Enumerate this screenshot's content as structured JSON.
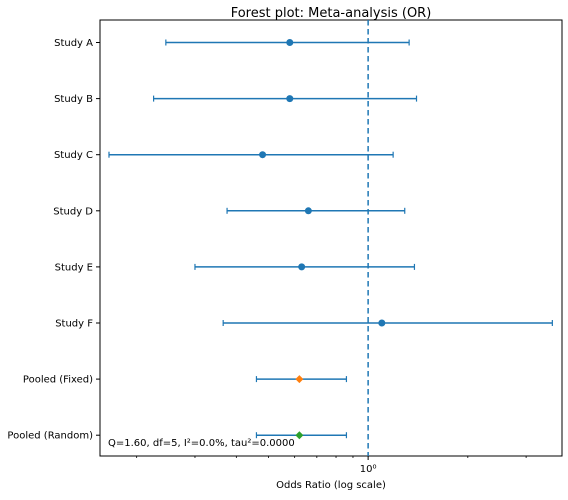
{
  "chart_data": {
    "type": "forest",
    "title": "Forest plot: Meta-analysis (OR)",
    "xlabel": "Odds Ratio (log scale)",
    "ylabel": "",
    "x_scale": "log",
    "xlim": [
      0.155,
      3.85
    ],
    "x_ticks": [
      {
        "value": 1,
        "label": "10⁰"
      }
    ],
    "reference_line": {
      "value": 1,
      "style": "dashed",
      "color": "#1f77b4"
    },
    "grid": false,
    "rows": [
      {
        "label": "Study A",
        "estimate": 0.58,
        "lower": 0.245,
        "upper": 1.33,
        "marker": "circle",
        "color": "#1f77b4"
      },
      {
        "label": "Study B",
        "estimate": 0.58,
        "lower": 0.225,
        "upper": 1.4,
        "marker": "circle",
        "color": "#1f77b4"
      },
      {
        "label": "Study C",
        "estimate": 0.48,
        "lower": 0.165,
        "upper": 1.19,
        "marker": "circle",
        "color": "#1f77b4"
      },
      {
        "label": "Study D",
        "estimate": 0.66,
        "lower": 0.375,
        "upper": 1.29,
        "marker": "circle",
        "color": "#1f77b4"
      },
      {
        "label": "Study E",
        "estimate": 0.63,
        "lower": 0.3,
        "upper": 1.38,
        "marker": "circle",
        "color": "#1f77b4"
      },
      {
        "label": "Study F",
        "estimate": 1.1,
        "lower": 0.365,
        "upper": 3.6,
        "marker": "circle",
        "color": "#1f77b4"
      },
      {
        "label": "Pooled (Fixed)",
        "estimate": 0.62,
        "lower": 0.46,
        "upper": 0.86,
        "marker": "diamond",
        "color": "#ff7f0e"
      },
      {
        "label": "Pooled (Random)",
        "estimate": 0.62,
        "lower": 0.46,
        "upper": 0.86,
        "marker": "diamond",
        "color": "#2ca02c"
      }
    ],
    "annotation": "Q=1.60, df=5, I²=0.0%, tau²=0.0000",
    "annotation_position": "bottom-left"
  }
}
